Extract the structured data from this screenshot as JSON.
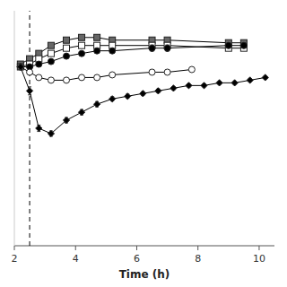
{
  "chart_data": {
    "type": "line",
    "xlabel": "Time (h)",
    "xlim": [
      2.0,
      10.5
    ],
    "ylim": [
      0.2,
      1.08
    ],
    "xticks": [
      2,
      4,
      6,
      8,
      10
    ],
    "tick_labels": "x",
    "grid": false,
    "vline": 2.5,
    "series": [
      {
        "marker": "square",
        "color": "#666666",
        "x": [
          2.2,
          2.5,
          2.8,
          3.2,
          3.7,
          4.2,
          4.7,
          5.2,
          6.5,
          7.0,
          9.0,
          9.5
        ],
        "values": [
          0.88,
          0.9,
          0.92,
          0.95,
          0.97,
          0.98,
          0.98,
          0.97,
          0.97,
          0.97,
          0.96,
          0.96
        ],
        "errors": [
          0.005,
          0.005,
          0.005,
          0.008,
          0.008,
          0.005,
          0.005,
          0.008,
          0.008,
          0.008,
          0.005,
          0.005
        ]
      },
      {
        "marker": "square",
        "color": "white",
        "x": [
          2.2,
          2.5,
          2.8,
          3.2,
          3.7,
          4.2,
          4.7,
          5.2,
          6.5,
          7.0,
          9.0,
          9.5
        ],
        "values": [
          0.87,
          0.88,
          0.9,
          0.92,
          0.94,
          0.95,
          0.95,
          0.95,
          0.95,
          0.95,
          0.94,
          0.94
        ],
        "errors": [
          0.005,
          0.005,
          0.005,
          0.008,
          0.008,
          0.005,
          0.005,
          0.008,
          0.008,
          0.008,
          0.005,
          0.005
        ]
      },
      {
        "marker": "circle",
        "color": "black",
        "x": [
          2.2,
          2.5,
          2.8,
          3.2,
          3.7,
          4.2,
          4.7,
          5.2,
          6.5,
          7.0,
          9.0,
          9.5
        ],
        "values": [
          0.87,
          0.87,
          0.88,
          0.89,
          0.91,
          0.92,
          0.93,
          0.93,
          0.94,
          0.94,
          0.95,
          0.95
        ],
        "errors": [
          0.005,
          0.005,
          0.005,
          0.005,
          0.005,
          0.005,
          0.007,
          0.007,
          0.012,
          0.012,
          0.01,
          0.01
        ]
      },
      {
        "marker": "circle",
        "color": "white",
        "x": [
          2.2,
          2.5,
          2.8,
          3.2,
          3.7,
          4.2,
          4.7,
          5.2,
          6.5,
          7.0,
          7.8
        ],
        "values": [
          0.87,
          0.85,
          0.83,
          0.82,
          0.82,
          0.83,
          0.83,
          0.84,
          0.85,
          0.85,
          0.86
        ],
        "errors": [
          0.005,
          0.005,
          0.005,
          0.005,
          0.005,
          0.005,
          0.005,
          0.005,
          0.005,
          0.005,
          0.005
        ]
      },
      {
        "marker": "diamond",
        "color": "black",
        "x": [
          2.2,
          2.5,
          2.8,
          3.2,
          3.7,
          4.2,
          4.7,
          5.2,
          5.7,
          6.2,
          6.7,
          7.2,
          7.7,
          8.2,
          8.7,
          9.2,
          9.7,
          10.2
        ],
        "values": [
          0.87,
          0.78,
          0.64,
          0.62,
          0.67,
          0.7,
          0.73,
          0.75,
          0.76,
          0.77,
          0.78,
          0.79,
          0.8,
          0.8,
          0.81,
          0.81,
          0.82,
          0.83
        ],
        "errors": [
          0.005,
          0.015,
          0.012,
          0.01,
          0.01,
          0.01,
          0.01,
          0.008,
          0.008,
          0.007,
          0.007,
          0.006,
          0.006,
          0.005,
          0.005,
          0.005,
          0.005,
          0.005
        ]
      }
    ]
  }
}
